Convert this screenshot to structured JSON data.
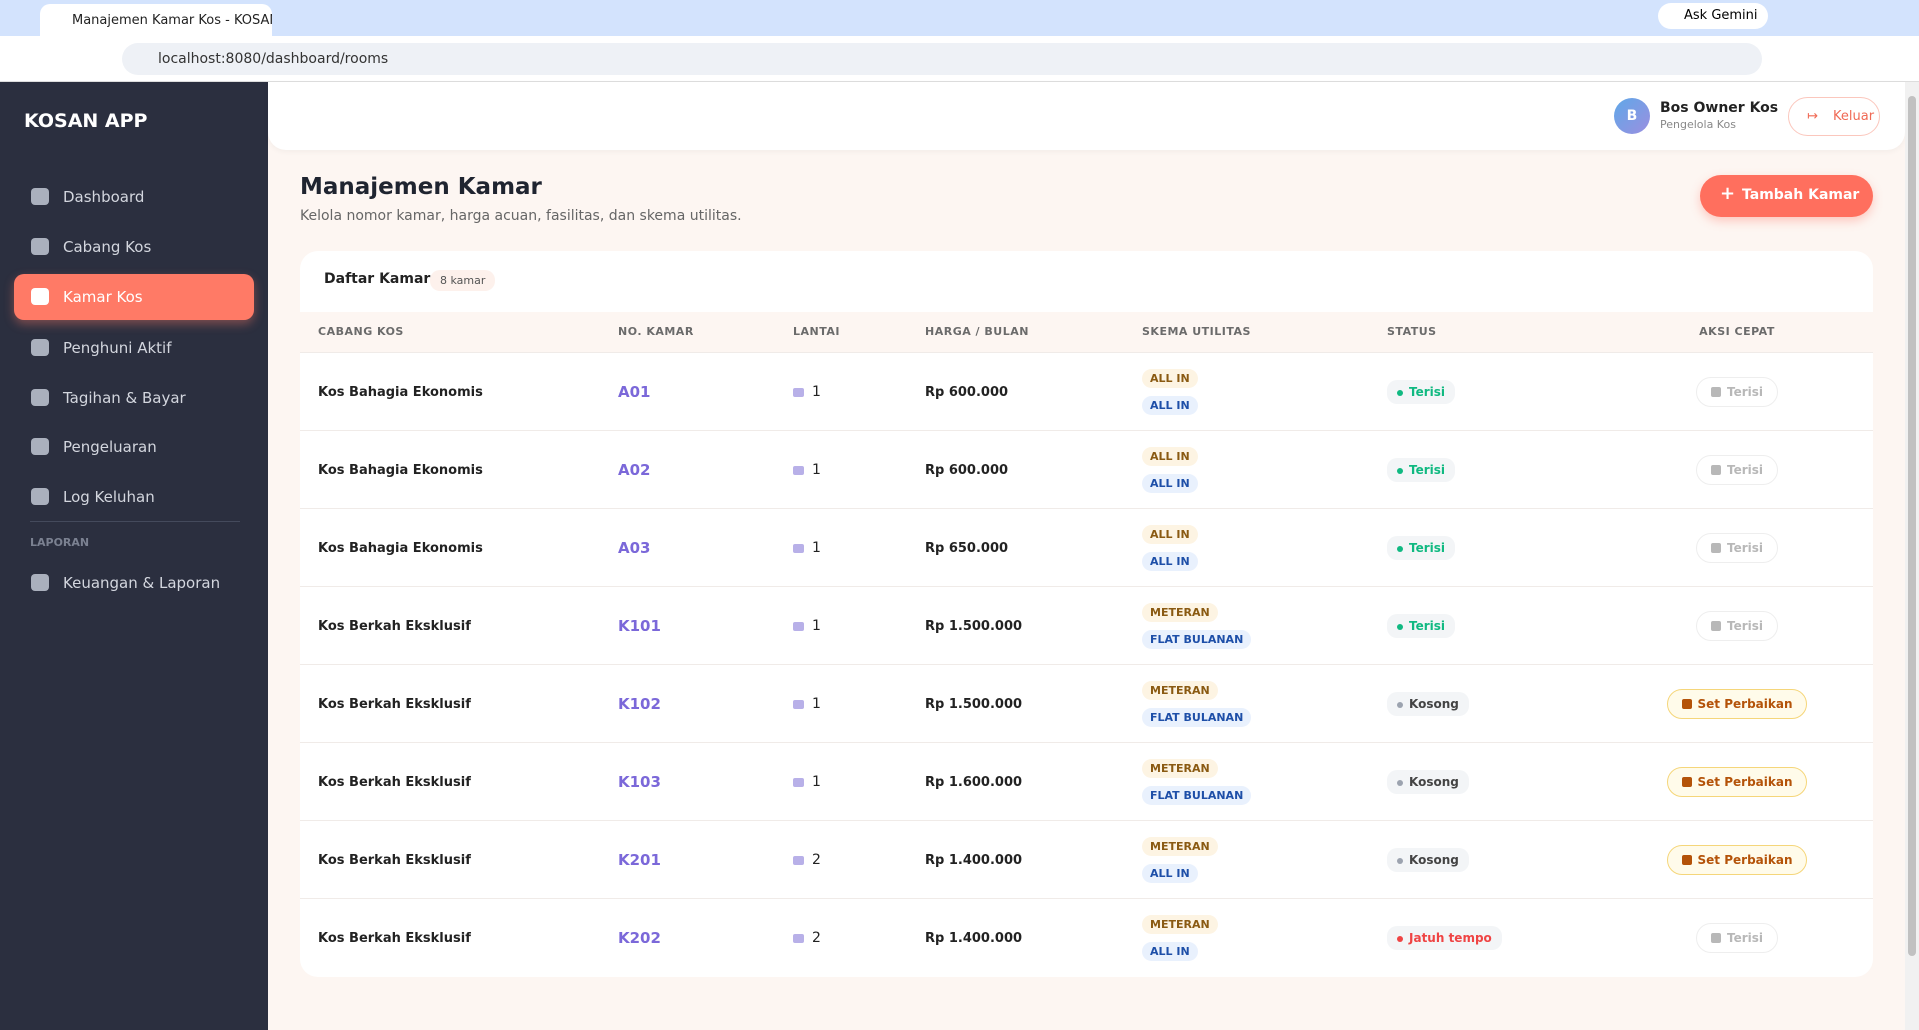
{
  "browser": {
    "tab_title": "Manajemen Kamar Kos - KOSAN",
    "url": "localhost:8080/dashboard/rooms",
    "gemini": "Ask Gemini"
  },
  "sidebar": {
    "brand": "KOSAN APP",
    "nav": [
      "Dashboard",
      "Cabang Kos",
      "Kamar Kos",
      "Penghuni Aktif",
      "Tagihan & Bayar",
      "Pengeluaran",
      "Log Keluhan"
    ],
    "active": 2,
    "section": "LAPORAN",
    "report_nav": [
      "Keuangan & Laporan"
    ]
  },
  "header": {
    "avatar": "B",
    "user": "Bos Owner Kos",
    "role": "Pengelola Kos",
    "logout": "Keluar"
  },
  "page": {
    "title": "Manajemen Kamar",
    "subtitle": "Kelola nomor kamar, harga acuan, fasilitas, dan skema utilitas.",
    "add_button": "Tambah Kamar"
  },
  "table": {
    "title": "Daftar Kamar",
    "count": "8 kamar",
    "headers": [
      "CABANG KOS",
      "NO. KAMAR",
      "LANTAI",
      "HARGA / BULAN",
      "SKEMA UTILITAS",
      "STATUS",
      "AKSI CEPAT"
    ],
    "rows": [
      {
        "branch": "Kos Bahagia Ekonomis",
        "room": "A01",
        "floor": "1",
        "price": "Rp 600.000",
        "electric": "ALL IN",
        "water": "ALL IN",
        "status": "Terisi",
        "status_color": "#10b981",
        "action": "Terisi",
        "action_color": "#b8b8b8"
      },
      {
        "branch": "Kos Bahagia Ekonomis",
        "room": "A02",
        "floor": "1",
        "price": "Rp 600.000",
        "electric": "ALL IN",
        "water": "ALL IN",
        "status": "Terisi",
        "status_color": "#10b981",
        "action": "Terisi",
        "action_color": "#b8b8b8"
      },
      {
        "branch": "Kos Bahagia Ekonomis",
        "room": "A03",
        "floor": "1",
        "price": "Rp 650.000",
        "electric": "ALL IN",
        "water": "ALL IN",
        "status": "Terisi",
        "status_color": "#10b981",
        "action": "Terisi",
        "action_color": "#b8b8b8"
      },
      {
        "branch": "Kos Berkah Eksklusif",
        "room": "K101",
        "floor": "1",
        "price": "Rp 1.500.000",
        "electric": "METERAN",
        "water": "FLAT BULANAN",
        "status": "Terisi",
        "status_color": "#10b981",
        "action": "Terisi",
        "action_color": "#b8b8b8"
      },
      {
        "branch": "Kos Berkah Eksklusif",
        "room": "K102",
        "floor": "1",
        "price": "Rp 1.500.000",
        "electric": "METERAN",
        "water": "FLAT BULANAN",
        "status": "Kosong",
        "status_color": "#9ca3af",
        "action": "Set Perbaikan",
        "action_color": "#b45309"
      },
      {
        "branch": "Kos Berkah Eksklusif",
        "room": "K103",
        "floor": "1",
        "price": "Rp 1.600.000",
        "electric": "METERAN",
        "water": "FLAT BULANAN",
        "status": "Kosong",
        "status_color": "#9ca3af",
        "action": "Set Perbaikan",
        "action_color": "#b45309"
      },
      {
        "branch": "Kos Berkah Eksklusif",
        "room": "K201",
        "floor": "2",
        "price": "Rp 1.400.000",
        "electric": "METERAN",
        "water": "ALL IN",
        "status": "Kosong",
        "status_color": "#9ca3af",
        "action": "Set Perbaikan",
        "action_color": "#b45309"
      },
      {
        "branch": "Kos Berkah Eksklusif",
        "room": "K202",
        "floor": "2",
        "price": "Rp 1.400.000",
        "electric": "METERAN",
        "water": "ALL IN",
        "status": "Jatuh tempo",
        "status_color": "#ef4444",
        "action": "Terisi",
        "action_color": "#b8b8b8"
      }
    ]
  }
}
